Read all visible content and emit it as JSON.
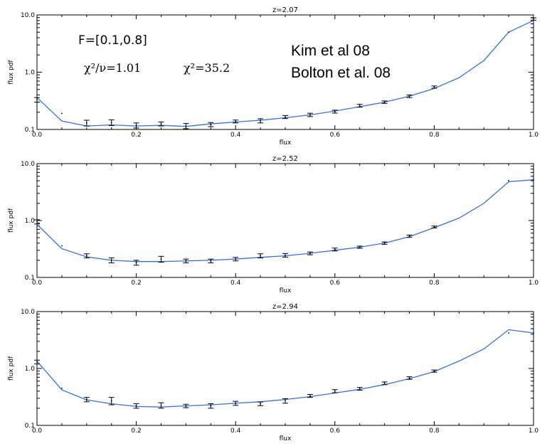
{
  "chart_data": [
    {
      "type": "line",
      "title": "z=2.07",
      "xlabel": "flux",
      "ylabel": "flux pdf",
      "xlim": [
        0.0,
        1.0
      ],
      "ylim": [
        0.1,
        10.0
      ],
      "yscale": "log",
      "xticks": [
        "0.0",
        "0.2",
        "0.4",
        "0.6",
        "0.8",
        "1.0"
      ],
      "yticks": [
        "0.1",
        "1.0",
        "10.0"
      ],
      "series": [
        {
          "style": "line",
          "x": [
            0.0,
            0.05,
            0.1,
            0.15,
            0.2,
            0.25,
            0.3,
            0.35,
            0.4,
            0.45,
            0.5,
            0.55,
            0.6,
            0.65,
            0.7,
            0.75,
            0.8,
            0.85,
            0.9,
            0.95,
            1.0
          ],
          "y": [
            0.36,
            0.14,
            0.115,
            0.12,
            0.115,
            0.118,
            0.113,
            0.125,
            0.135,
            0.145,
            0.16,
            0.18,
            0.21,
            0.25,
            0.3,
            0.38,
            0.52,
            0.8,
            1.6,
            5.0,
            8.0
          ]
        },
        {
          "style": "errorbar",
          "x": [
            0.0,
            0.05,
            0.1,
            0.15,
            0.2,
            0.25,
            0.3,
            0.35,
            0.4,
            0.45,
            0.5,
            0.55,
            0.6,
            0.65,
            0.7,
            0.75,
            0.8,
            0.95,
            1.0
          ],
          "y": [
            0.33,
            0.19,
            0.13,
            0.132,
            0.118,
            0.125,
            0.115,
            0.122,
            0.138,
            0.142,
            0.165,
            0.18,
            0.205,
            0.26,
            0.3,
            0.38,
            0.55,
            5.0,
            8.5
          ],
          "err": [
            0.03,
            0.0,
            0.015,
            0.015,
            0.012,
            0.01,
            0.012,
            0.01,
            0.008,
            0.012,
            0.01,
            0.012,
            0.012,
            0.015,
            0.015,
            0.02,
            0.025,
            0.0,
            0.4
          ]
        }
      ],
      "annotations": [
        {
          "text": "F=[0.1,0.8]"
        },
        {
          "text": "χ²/ν=1.01"
        },
        {
          "text": "χ²=35.2"
        },
        {
          "text": "Kim et al 08"
        },
        {
          "text": "Bolton et al. 08"
        }
      ]
    },
    {
      "type": "line",
      "title": "z=2.52",
      "xlabel": "flux",
      "ylabel": "flux pdf",
      "xlim": [
        0.0,
        1.0
      ],
      "ylim": [
        0.1,
        10.0
      ],
      "yscale": "log",
      "xticks": [
        "0.0",
        "0.2",
        "0.4",
        "0.6",
        "0.8",
        "1.0"
      ],
      "yticks": [
        "0.1",
        "1.0",
        "10.0"
      ],
      "series": [
        {
          "style": "line",
          "x": [
            0.0,
            0.05,
            0.1,
            0.15,
            0.2,
            0.25,
            0.3,
            0.35,
            0.4,
            0.45,
            0.5,
            0.55,
            0.6,
            0.65,
            0.7,
            0.75,
            0.8,
            0.85,
            0.9,
            0.95,
            1.0
          ],
          "y": [
            0.85,
            0.32,
            0.23,
            0.2,
            0.19,
            0.19,
            0.195,
            0.2,
            0.21,
            0.225,
            0.24,
            0.265,
            0.3,
            0.34,
            0.4,
            0.52,
            0.75,
            1.1,
            2.0,
            4.8,
            5.2
          ]
        },
        {
          "style": "errorbar",
          "x": [
            0.0,
            0.05,
            0.1,
            0.15,
            0.2,
            0.25,
            0.3,
            0.35,
            0.4,
            0.45,
            0.5,
            0.55,
            0.6,
            0.65,
            0.7,
            0.75,
            0.8,
            0.95,
            1.0
          ],
          "y": [
            0.95,
            0.36,
            0.24,
            0.2,
            0.182,
            0.21,
            0.195,
            0.195,
            0.21,
            0.24,
            0.245,
            0.265,
            0.31,
            0.34,
            0.4,
            0.53,
            0.77,
            5.0,
            5.2
          ],
          "err": [
            0.08,
            0.0,
            0.02,
            0.02,
            0.018,
            0.025,
            0.015,
            0.015,
            0.015,
            0.02,
            0.018,
            0.015,
            0.018,
            0.015,
            0.02,
            0.025,
            0.03,
            0.0,
            0.0
          ]
        }
      ]
    },
    {
      "type": "line",
      "title": "z=2.94",
      "xlabel": "flux",
      "ylabel": "flux pdf",
      "xlim": [
        0.0,
        1.0
      ],
      "ylim": [
        0.1,
        10.0
      ],
      "yscale": "log",
      "xticks": [
        "0.0",
        "0.2",
        "0.4",
        "0.6",
        "0.8",
        "1.0"
      ],
      "yticks": [
        "0.1",
        "1.0",
        "10.0"
      ],
      "series": [
        {
          "style": "line",
          "x": [
            0.0,
            0.05,
            0.1,
            0.15,
            0.2,
            0.25,
            0.3,
            0.35,
            0.4,
            0.45,
            0.5,
            0.55,
            0.6,
            0.65,
            0.7,
            0.75,
            0.8,
            0.85,
            0.9,
            0.95,
            1.0
          ],
          "y": [
            1.35,
            0.42,
            0.28,
            0.24,
            0.215,
            0.21,
            0.22,
            0.23,
            0.245,
            0.26,
            0.285,
            0.32,
            0.37,
            0.43,
            0.52,
            0.66,
            0.88,
            1.35,
            2.2,
            4.8,
            4.2
          ]
        },
        {
          "style": "errorbar",
          "x": [
            0.0,
            0.05,
            0.1,
            0.15,
            0.2,
            0.25,
            0.3,
            0.35,
            0.4,
            0.45,
            0.5,
            0.55,
            0.6,
            0.65,
            0.7,
            0.75,
            0.8,
            0.95,
            1.0
          ],
          "y": [
            1.3,
            0.45,
            0.285,
            0.27,
            0.22,
            0.225,
            0.22,
            0.22,
            0.245,
            0.24,
            0.27,
            0.33,
            0.4,
            0.44,
            0.55,
            0.68,
            0.9,
            4.2,
            4.2
          ],
          "err": [
            0.1,
            0.0,
            0.025,
            0.04,
            0.02,
            0.025,
            0.015,
            0.02,
            0.02,
            0.018,
            0.025,
            0.02,
            0.025,
            0.025,
            0.03,
            0.035,
            0.04,
            0.0,
            0.0
          ]
        }
      ]
    }
  ],
  "colors": {
    "model_line": "#3a6fd8",
    "data": "#000000",
    "background": "#ffffff"
  }
}
